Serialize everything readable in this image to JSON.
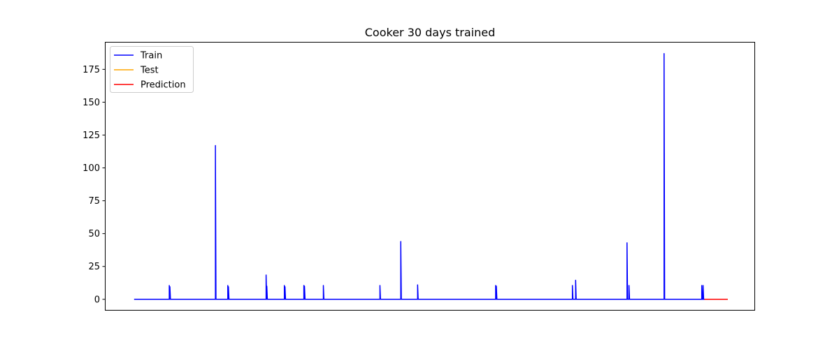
{
  "chart_data": {
    "type": "line",
    "title": "Cooker 30 days trained",
    "xlabel": "",
    "ylabel": "",
    "x_ticks_shown": false,
    "xlim": [
      0,
      1000
    ],
    "ylim": [
      -8.6,
      195.9
    ],
    "y_ticks": [
      0,
      25,
      50,
      75,
      100,
      125,
      150,
      175
    ],
    "legend": {
      "placement": "top-left",
      "entries": [
        "Train",
        "Test",
        "Prediction"
      ]
    },
    "series": [
      {
        "name": "Train",
        "color": "#0000ff",
        "baseline": 0,
        "range": [
          45,
          922
        ],
        "spikes": [
          {
            "x": 99,
            "y": 10.5
          },
          {
            "x": 100,
            "y": 9.5
          },
          {
            "x": 170,
            "y": 117
          },
          {
            "x": 189,
            "y": 10.5
          },
          {
            "x": 190,
            "y": 9.5
          },
          {
            "x": 248,
            "y": 18.5
          },
          {
            "x": 249,
            "y": 10
          },
          {
            "x": 276,
            "y": 10.5
          },
          {
            "x": 277,
            "y": 9.5
          },
          {
            "x": 306,
            "y": 10.5
          },
          {
            "x": 307,
            "y": 10
          },
          {
            "x": 336,
            "y": 10.5
          },
          {
            "x": 423,
            "y": 10.5
          },
          {
            "x": 455,
            "y": 44
          },
          {
            "x": 481,
            "y": 11
          },
          {
            "x": 601,
            "y": 10.5
          },
          {
            "x": 602,
            "y": 10
          },
          {
            "x": 719,
            "y": 10.5
          },
          {
            "x": 724,
            "y": 14.5
          },
          {
            "x": 803,
            "y": 43
          },
          {
            "x": 806,
            "y": 10.5
          },
          {
            "x": 860,
            "y": 187
          },
          {
            "x": 918,
            "y": 10.5
          },
          {
            "x": 920,
            "y": 10.5
          }
        ]
      },
      {
        "name": "Test",
        "color": "#ffa500",
        "baseline": 0,
        "range": [
          922,
          958
        ],
        "spikes": []
      },
      {
        "name": "Prediction",
        "color": "#ff0000",
        "baseline": 0,
        "range": [
          922,
          958
        ],
        "spikes": []
      }
    ]
  }
}
